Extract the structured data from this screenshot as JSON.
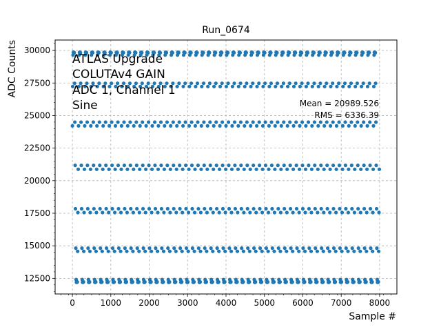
{
  "chart_data": {
    "type": "scatter",
    "title": "Run_0674",
    "xlabel": "Sample #",
    "ylabel": "ADC Counts",
    "xlim": [
      -450,
      8450
    ],
    "ylim": [
      11300,
      30800
    ],
    "xticks": [
      0,
      1000,
      2000,
      3000,
      4000,
      5000,
      6000,
      7000,
      8000
    ],
    "yticks": [
      12500,
      15000,
      17500,
      20000,
      22500,
      25000,
      27500,
      30000
    ],
    "grid": true,
    "grid_style": "dashed",
    "marker_color": "#1f77b4",
    "signal": {
      "shape": "sine, clipped at ADC saturation",
      "n_samples": 8000,
      "x_range": [
        0,
        7999
      ],
      "y_min": 12200,
      "y_max": 29850,
      "approx_period_samples": 160
    },
    "annotations": {
      "top_left": [
        "ATLAS Upgrade",
        "COLUTAv4 GAIN",
        "ADC 1, Channel 1",
        "Sine"
      ],
      "mean": "Mean = 20989.526",
      "rms": "RMS = 6336.39"
    }
  }
}
